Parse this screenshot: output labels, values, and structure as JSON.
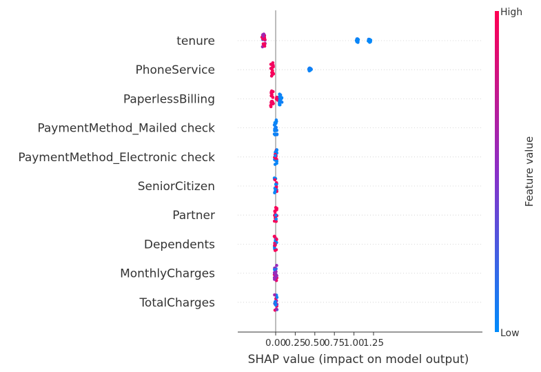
{
  "chart_data": {
    "type": "scatter",
    "subtype": "shap-beeswarm",
    "xlabel": "SHAP value (impact on model output)",
    "xlim": [
      -0.22,
      1.28
    ],
    "xticks": [
      0.0,
      0.25,
      0.5,
      0.75,
      1.0,
      1.25
    ],
    "xtick_labels": [
      "0.00",
      "0.25",
      "0.50",
      "0.75",
      "1.00",
      "1.25"
    ],
    "zero_line": 0.0,
    "grid": false,
    "colorbar": {
      "title": "Feature value",
      "high_label": "High",
      "low_label": "Low",
      "low_color": "#008bfb",
      "mid_color": "#8a2fc7",
      "high_color": "#ff0052"
    },
    "features": [
      {
        "name": "tenure",
        "clusters": [
          {
            "center": -0.155,
            "halfwidth": 0.02,
            "spread": 0.55,
            "mix": "magenta"
          },
          {
            "center": 1.04,
            "halfwidth": 0.01,
            "spread": 0.12,
            "mix": "low"
          },
          {
            "center": 1.2,
            "halfwidth": 0.01,
            "spread": 0.12,
            "mix": "low"
          }
        ]
      },
      {
        "name": "PhoneService",
        "clusters": [
          {
            "center": -0.045,
            "halfwidth": 0.004,
            "spread": 0.5,
            "mix": "high"
          },
          {
            "center": 0.44,
            "halfwidth": 0.006,
            "spread": 0.12,
            "mix": "low"
          }
        ]
      },
      {
        "name": "PaperlessBilling",
        "clusters": [
          {
            "center": -0.048,
            "halfwidth": 0.005,
            "spread": 0.55,
            "mix": "high"
          },
          {
            "center": 0.025,
            "halfwidth": 0.006,
            "spread": 0.12,
            "mix": "high"
          },
          {
            "center": 0.065,
            "halfwidth": 0.005,
            "spread": 0.45,
            "mix": "low"
          }
        ]
      },
      {
        "name": "PaymentMethod_Mailed check",
        "clusters": [
          {
            "center": 0.0,
            "halfwidth": 0.005,
            "spread": 0.55,
            "mix": "low"
          }
        ]
      },
      {
        "name": "PaymentMethod_Electronic check",
        "clusters": [
          {
            "center": 0.0,
            "halfwidth": 0.005,
            "spread": 0.55,
            "mix": "mixed"
          }
        ]
      },
      {
        "name": "SeniorCitizen",
        "clusters": [
          {
            "center": 0.0,
            "halfwidth": 0.005,
            "spread": 0.55,
            "mix": "low-some-high"
          }
        ]
      },
      {
        "name": "Partner",
        "clusters": [
          {
            "center": 0.0,
            "halfwidth": 0.005,
            "spread": 0.55,
            "mix": "high-some-low"
          }
        ]
      },
      {
        "name": "Dependents",
        "clusters": [
          {
            "center": 0.0,
            "halfwidth": 0.005,
            "spread": 0.55,
            "mix": "mixed"
          }
        ]
      },
      {
        "name": "MonthlyCharges",
        "clusters": [
          {
            "center": 0.0,
            "halfwidth": 0.005,
            "spread": 0.55,
            "mix": "purple-low"
          }
        ]
      },
      {
        "name": "TotalCharges",
        "clusters": [
          {
            "center": 0.0,
            "halfwidth": 0.005,
            "spread": 0.55,
            "mix": "purple-mixed"
          }
        ]
      }
    ]
  }
}
